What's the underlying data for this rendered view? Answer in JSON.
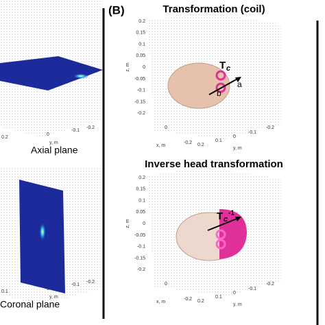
{
  "left": {
    "axial": {
      "caption": "Axial plane",
      "ticks": [
        "0.2",
        "0",
        "y, m",
        "-0.1",
        "-0.2"
      ]
    },
    "coronal": {
      "caption": "Coronal plane",
      "ticks": [
        "0.1",
        "0",
        "y, m",
        "-0.1",
        "-0.2"
      ]
    }
  },
  "panel_b": {
    "label": "(B)",
    "plots": [
      {
        "title": "Transformation (coil)",
        "z_ticks": [
          "0.2",
          "0.15",
          "0.1",
          "0.05",
          "0",
          "-0.05",
          "-0.1",
          "-0.15",
          "-0.2"
        ],
        "z_label": "z, m",
        "x_ticks": [
          "-0.2",
          "0"
        ],
        "x_label": "x, m",
        "y_ticks": [
          "0.2",
          "0.1",
          "0",
          "-0.1",
          "-0.2"
        ],
        "y_label": "y, m",
        "annotations": {
          "symbol": "T",
          "subscript": "c",
          "a": "a",
          "b": "b"
        }
      },
      {
        "title": "Inverse head transformation",
        "z_ticks": [
          "0.2",
          "0.15",
          "0.1",
          "0.05",
          "0",
          "-0.05",
          "-0.1",
          "-0.15",
          "-0.2"
        ],
        "z_label": "z, m",
        "x_ticks": [
          "-0.2",
          "0"
        ],
        "x_label": "x, m",
        "y_ticks": [
          "0.2",
          "0.1",
          "0",
          "-0.1",
          "-0.2"
        ],
        "y_label": "y, m",
        "annotations": {
          "symbol": "T",
          "subscript": "c",
          "superscript": "-1"
        }
      }
    ]
  }
}
